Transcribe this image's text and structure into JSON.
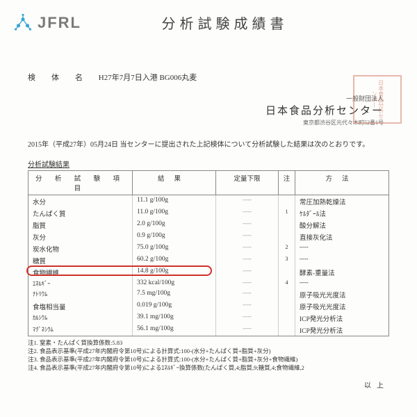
{
  "logo_text": "JFRL",
  "doc_title": "分析試験成績書",
  "sample_label": "検　体　名",
  "sample_value": "H27年7月7日入港 BG006丸麦",
  "org_sub": "一般財団法人",
  "org_name": "日本食品分析センター",
  "org_addr": "東京都渋谷区元代々木町52番1号",
  "stamp_text": "日本食品分析センター",
  "intro": "2015年（平成27年）05月24日 当センターに提出された上記検体について分析試験した結果は次のとおりです。",
  "section_title": "分析試験結果",
  "headers": {
    "c1": "分 析 試 験 項 目",
    "c2": "結果",
    "c3": "定量下限",
    "c4": "注",
    "c5": "方法"
  },
  "rows": [
    {
      "item": "水分",
      "result": "11.1 g/100g",
      "lower": "----",
      "note": "",
      "method": "常圧加熱乾燥法"
    },
    {
      "item": "たんぱく質",
      "result": "11.0 g/100g",
      "lower": "----",
      "note": "1",
      "method": "ｹﾙﾀﾞｰﾙ法"
    },
    {
      "item": "脂質",
      "result": "2.0 g/100g",
      "lower": "----",
      "note": "",
      "method": "酸分解法"
    },
    {
      "item": "灰分",
      "result": "0.9 g/100g",
      "lower": "----",
      "note": "",
      "method": "直接灰化法"
    },
    {
      "item": "炭水化物",
      "result": "75.0 g/100g",
      "lower": "----",
      "note": "2",
      "method": "----"
    },
    {
      "item": "糖質",
      "result": "60.2 g/100g",
      "lower": "----",
      "note": "3",
      "method": "----"
    },
    {
      "item": "食物繊維",
      "result": "14.8 g/100g",
      "lower": "----",
      "note": "",
      "method": "酵素-重量法",
      "highlight": true
    },
    {
      "item": "ｴﾈﾙｷﾞｰ",
      "result": "332 kcal/100g",
      "lower": "----",
      "note": "4",
      "method": "----",
      "small": true
    },
    {
      "item": "ﾅﾄﾘｳﾑ",
      "result": "7.5 mg/100g",
      "lower": "----",
      "note": "",
      "method": "原子吸光光度法",
      "small": true
    },
    {
      "item": "食塩相当量",
      "result": "0.019 g/100g",
      "lower": "----",
      "note": "",
      "method": "原子吸光光度法"
    },
    {
      "item": "ｶﾙｼｳﾑ",
      "result": "39.1 mg/100g",
      "lower": "----",
      "note": "",
      "method": "ICP発光分析法",
      "small": true
    },
    {
      "item": "ﾏｸﾞﾈｼｳﾑ",
      "result": "56.1 mg/100g",
      "lower": "----",
      "note": "",
      "method": "ICP発光分析法",
      "small": true
    }
  ],
  "notes": [
    "注1.  窒素・たんぱく質換算係数:5.83",
    "注2.  食品表示基準(平成27年内閣府令第10号)による計算式:100-(水分+たんぱく質+脂質+灰分)",
    "注3.  食品表示基準(平成27年内閣府令第10号)による計算式:100-(水分+たんぱく質+脂質+灰分+食物繊維)",
    "注4.  食品表示基準(平成27年内閣府令第10号)によるｴﾈﾙｷﾞｰ換算係数(たんぱく質,4;脂質,9;糖質,4;食物繊維,2"
  ],
  "footer": "以上"
}
